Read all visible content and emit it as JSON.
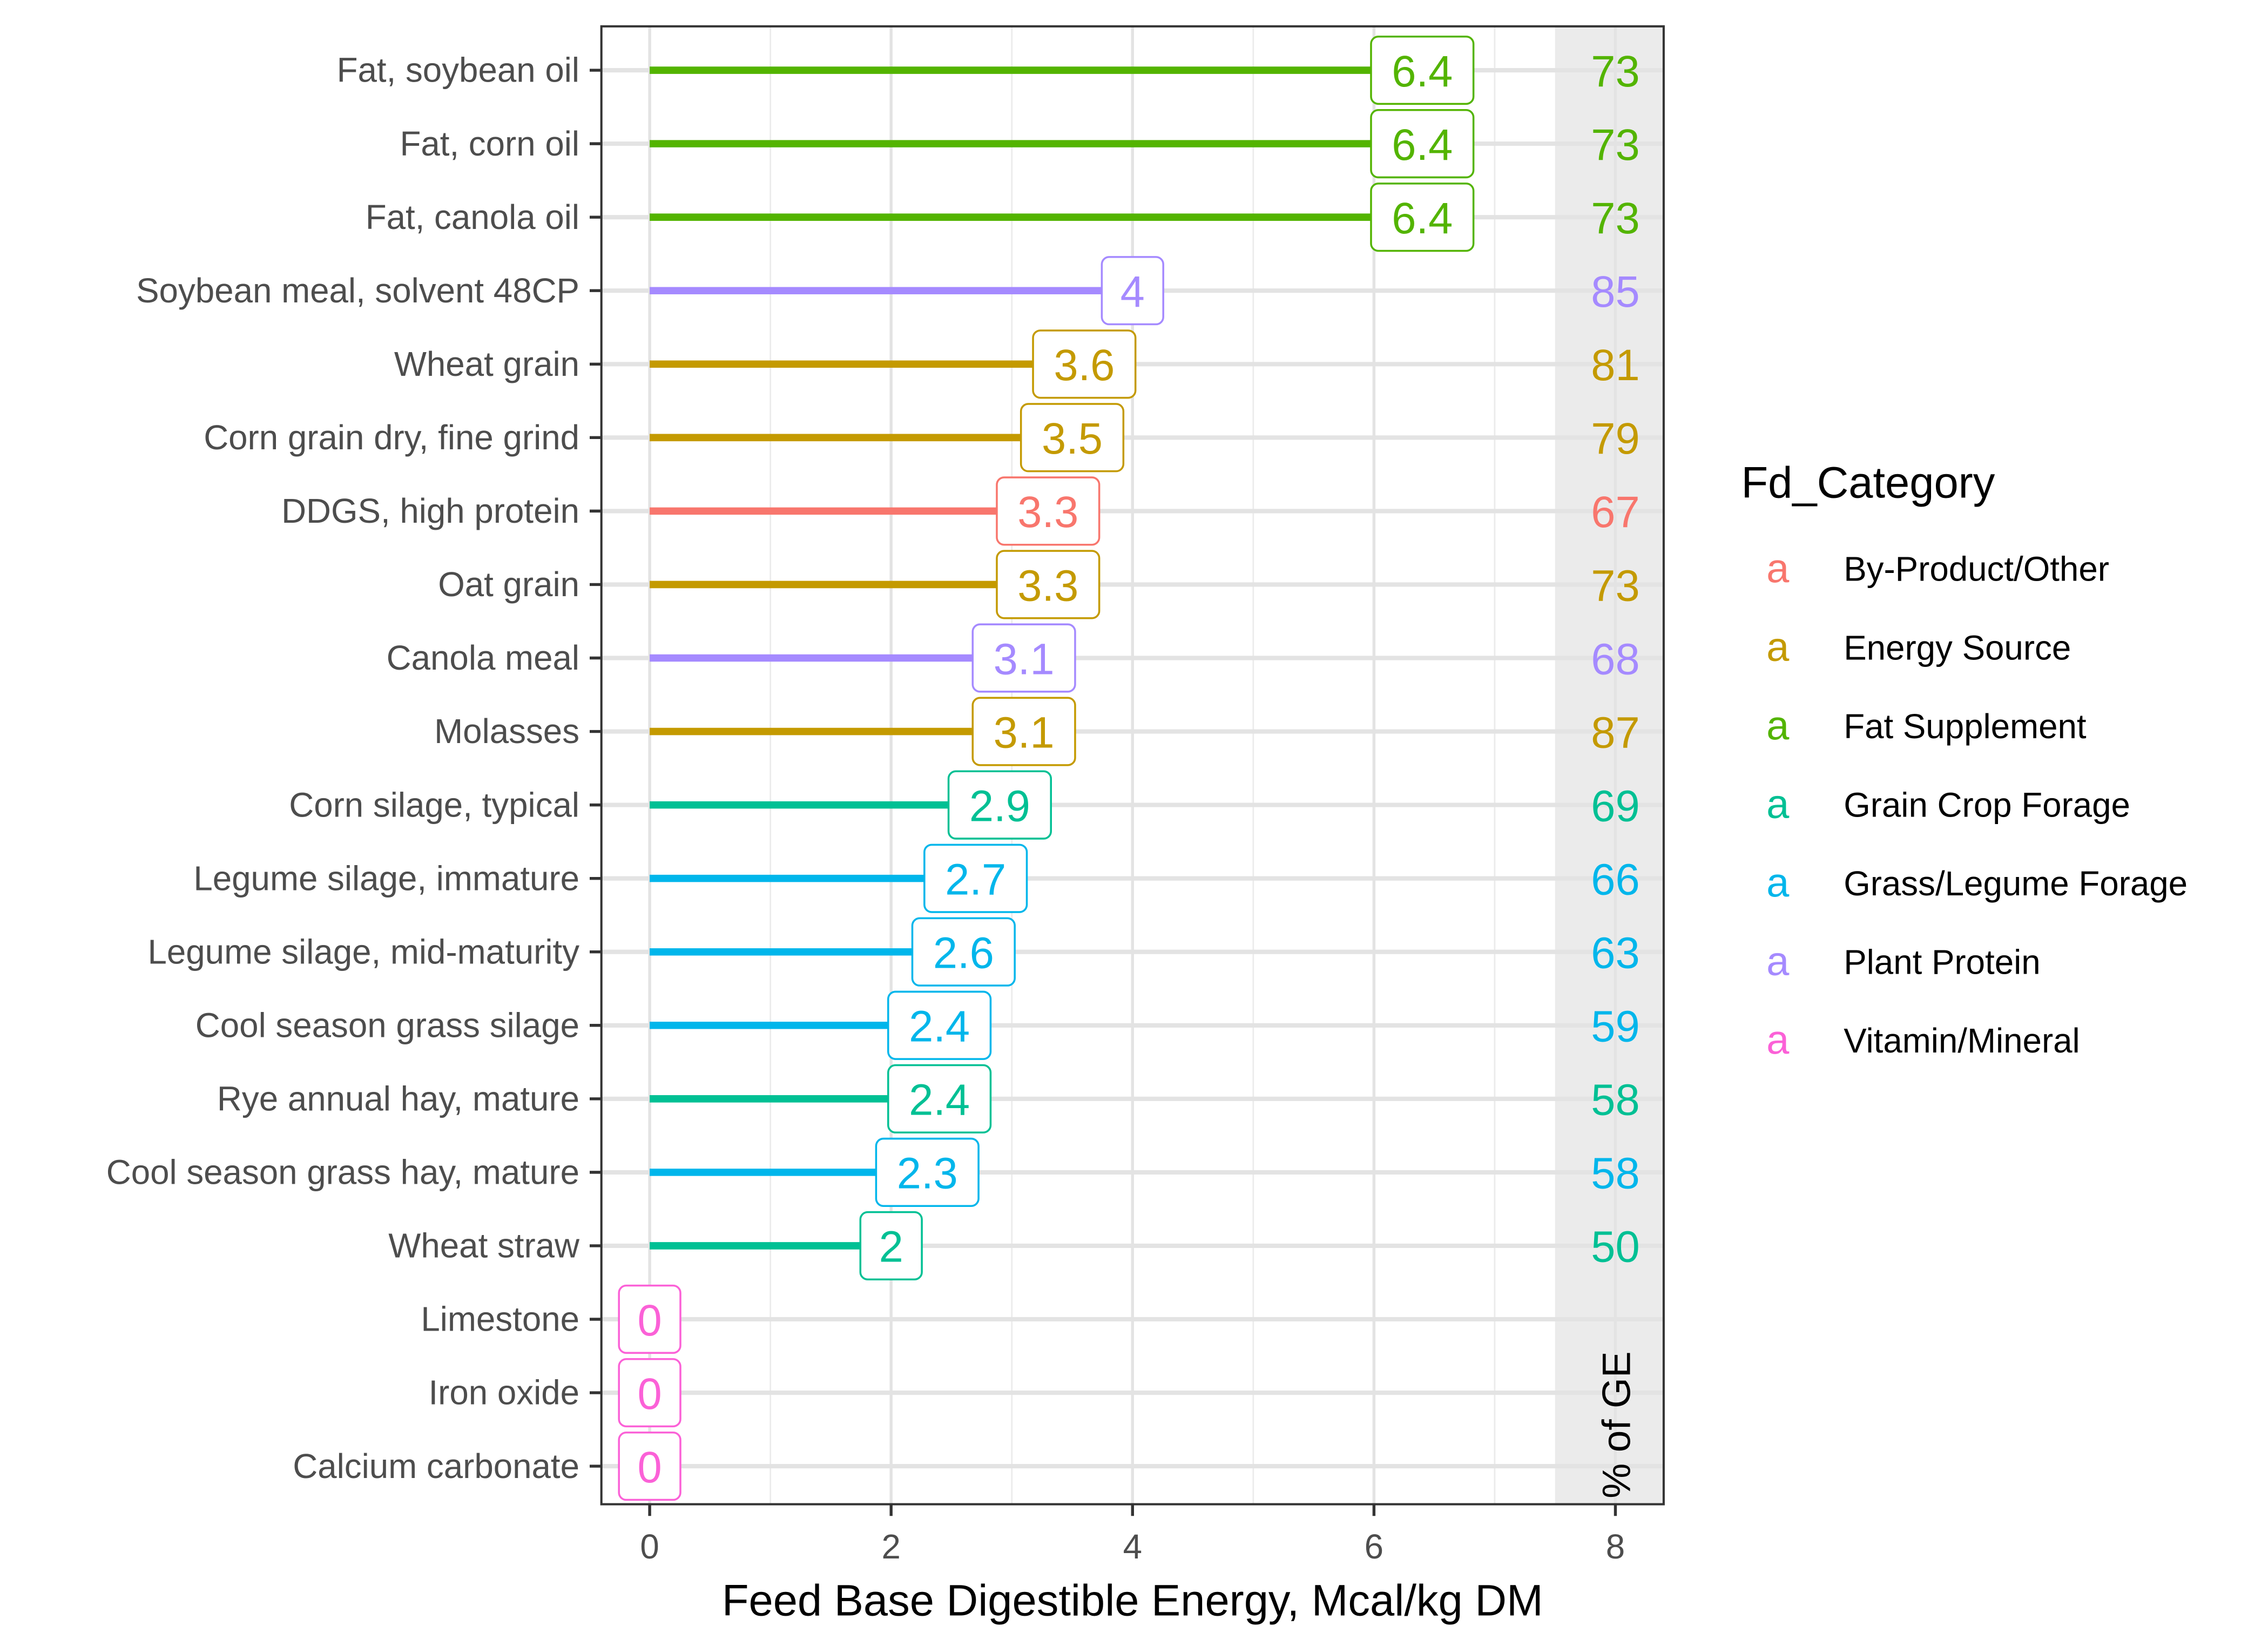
{
  "chart_data": {
    "type": "lollipop-bar",
    "xlabel": "Feed Base Digestible Energy, Mcal/kg DM",
    "ylabel": "",
    "xlim": [
      0,
      8
    ],
    "x_ticks": [
      "0",
      "2",
      "4",
      "6",
      "8"
    ],
    "grid": true,
    "strip_label": "% of GE",
    "legend": {
      "title": "Fd_Category",
      "placement": "right",
      "key_glyph": "a",
      "entries": [
        {
          "name": "By-Product/Other",
          "color": "#F8766D"
        },
        {
          "name": "Energy Source",
          "color": "#C49A00"
        },
        {
          "name": "Fat Supplement",
          "color": "#53B400"
        },
        {
          "name": "Grain Crop Forage",
          "color": "#00C094"
        },
        {
          "name": "Grass/Legume Forage",
          "color": "#00B6EB"
        },
        {
          "name": "Plant Protein",
          "color": "#A58AFF"
        },
        {
          "name": "Vitamin/Mineral",
          "color": "#FB61D7"
        }
      ]
    },
    "rows": [
      {
        "feed": "Fat, soybean oil",
        "category": "Fat Supplement",
        "value": 6.4,
        "label": "6.4",
        "pct_ge": "73"
      },
      {
        "feed": "Fat, corn oil",
        "category": "Fat Supplement",
        "value": 6.4,
        "label": "6.4",
        "pct_ge": "73"
      },
      {
        "feed": "Fat, canola oil",
        "category": "Fat Supplement",
        "value": 6.4,
        "label": "6.4",
        "pct_ge": "73"
      },
      {
        "feed": "Soybean meal, solvent 48CP",
        "category": "Plant Protein",
        "value": 4.0,
        "label": "4",
        "pct_ge": "85"
      },
      {
        "feed": "Wheat grain",
        "category": "Energy Source",
        "value": 3.6,
        "label": "3.6",
        "pct_ge": "81"
      },
      {
        "feed": "Corn grain dry, fine grind",
        "category": "Energy Source",
        "value": 3.5,
        "label": "3.5",
        "pct_ge": "79"
      },
      {
        "feed": "DDGS, high protein",
        "category": "By-Product/Other",
        "value": 3.3,
        "label": "3.3",
        "pct_ge": "67"
      },
      {
        "feed": "Oat grain",
        "category": "Energy Source",
        "value": 3.3,
        "label": "3.3",
        "pct_ge": "73"
      },
      {
        "feed": "Canola meal",
        "category": "Plant Protein",
        "value": 3.1,
        "label": "3.1",
        "pct_ge": "68"
      },
      {
        "feed": "Molasses",
        "category": "Energy Source",
        "value": 3.1,
        "label": "3.1",
        "pct_ge": "87"
      },
      {
        "feed": "Corn silage, typical",
        "category": "Grain Crop Forage",
        "value": 2.9,
        "label": "2.9",
        "pct_ge": "69"
      },
      {
        "feed": "Legume silage, immature",
        "category": "Grass/Legume Forage",
        "value": 2.7,
        "label": "2.7",
        "pct_ge": "66"
      },
      {
        "feed": "Legume silage, mid-maturity",
        "category": "Grass/Legume Forage",
        "value": 2.6,
        "label": "2.6",
        "pct_ge": "63"
      },
      {
        "feed": "Cool season grass silage",
        "category": "Grass/Legume Forage",
        "value": 2.4,
        "label": "2.4",
        "pct_ge": "59"
      },
      {
        "feed": "Rye annual hay, mature",
        "category": "Grain Crop Forage",
        "value": 2.4,
        "label": "2.4",
        "pct_ge": "58"
      },
      {
        "feed": "Cool season grass hay, mature",
        "category": "Grass/Legume Forage",
        "value": 2.3,
        "label": "2.3",
        "pct_ge": "58"
      },
      {
        "feed": "Wheat straw",
        "category": "Grain Crop Forage",
        "value": 2.0,
        "label": "2",
        "pct_ge": "50"
      },
      {
        "feed": "Limestone",
        "category": "Vitamin/Mineral",
        "value": 0,
        "label": "0",
        "pct_ge": ""
      },
      {
        "feed": "Iron oxide",
        "category": "Vitamin/Mineral",
        "value": 0,
        "label": "0",
        "pct_ge": ""
      },
      {
        "feed": "Calcium carbonate",
        "category": "Vitamin/Mineral",
        "value": 0,
        "label": "0",
        "pct_ge": ""
      }
    ]
  }
}
